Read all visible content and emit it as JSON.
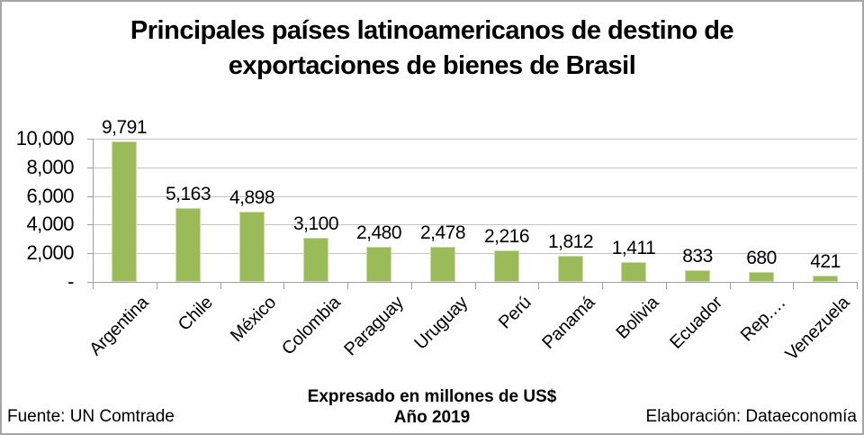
{
  "title_lines": [
    "Principales países latinoamericanos de destino de",
    "exportaciones de bienes de Brasil"
  ],
  "chart_data": {
    "type": "bar",
    "title": "Principales países latinoamericanos de destino de exportaciones de bienes de Brasil",
    "categories": [
      "Argentina",
      "Chile",
      "México",
      "Colombia",
      "Paraguay",
      "Uruguay",
      "Perú",
      "Panamá",
      "Bolivia",
      "Ecuador",
      "Rep.…",
      "Venezuela"
    ],
    "values": [
      9791,
      5163,
      4898,
      3100,
      2480,
      2478,
      2216,
      1812,
      1411,
      833,
      680,
      421
    ],
    "value_labels": [
      "9,791",
      "5,163",
      "4,898",
      "3,100",
      "2,480",
      "2,478",
      "2,216",
      "1,812",
      "1,411",
      "833",
      "680",
      "421"
    ],
    "y_ticks": [
      {
        "value": 10000,
        "label": "10,000"
      },
      {
        "value": 8000,
        "label": "8,000"
      },
      {
        "value": 6000,
        "label": "6,000"
      },
      {
        "value": 4000,
        "label": "4,000"
      },
      {
        "value": 2000,
        "label": "2,000"
      },
      {
        "value": 0,
        "label": "-"
      }
    ],
    "ylim": [
      0,
      10000
    ],
    "xlabel": "",
    "ylabel": "",
    "grid": true,
    "legend_position": "none",
    "bar_color": "#9bbb59",
    "bar_edge_color": "#cddcab",
    "gridline_color": "#c3c3c3",
    "axis_color": "#9f9f9f",
    "text_color": "#000000"
  },
  "footer": {
    "source": "Fuente: UN Comtrade",
    "center_lines": [
      "Expresado en millones de US$",
      "Año 2019"
    ],
    "elaboration": "Elaboración: Dataeconomía"
  }
}
